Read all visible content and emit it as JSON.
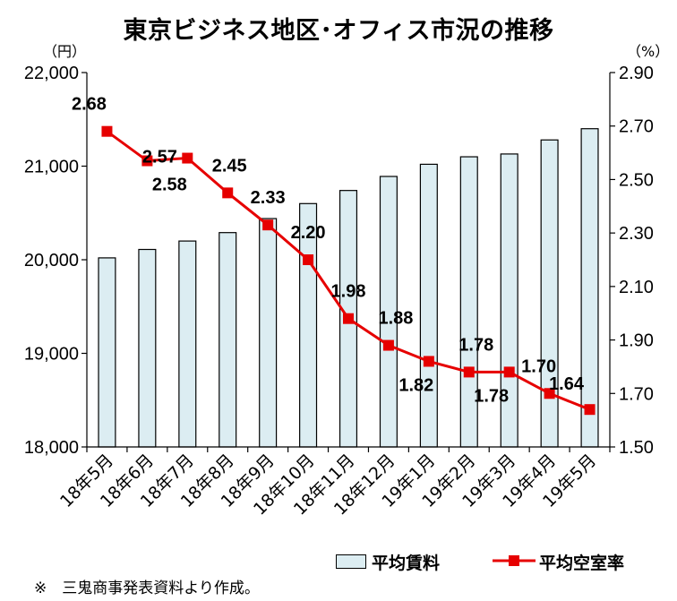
{
  "title": "東京ビジネス地区･オフィス市況の推移",
  "units": {
    "left": "（円）",
    "right": "（%）"
  },
  "footnote": "※　三鬼商事発表資料より作成。",
  "colors": {
    "bar_fill": "#dcedf2",
    "bar_stroke": "#000000",
    "line": "#e60000",
    "axis": "#000000"
  },
  "chart_data": {
    "type": "bar+line",
    "categories": [
      "18年5月",
      "18年6月",
      "18年7月",
      "18年8月",
      "18年9月",
      "18年10月",
      "18年11月",
      "18年12月",
      "19年1月",
      "19年2月",
      "19年3月",
      "19年4月",
      "19年5月"
    ],
    "y_left": {
      "min": 18000,
      "max": 22000,
      "ticks": [
        "18,000",
        "19,000",
        "20,000",
        "21,000",
        "22,000"
      ],
      "tick_values": [
        18000,
        19000,
        20000,
        21000,
        22000
      ]
    },
    "y_right": {
      "min": 1.5,
      "max": 2.9,
      "ticks": [
        "1.50",
        "1.70",
        "1.90",
        "2.10",
        "2.30",
        "2.50",
        "2.70",
        "2.90"
      ],
      "tick_values": [
        1.5,
        1.7,
        1.9,
        2.1,
        2.3,
        2.5,
        2.7,
        2.9
      ]
    },
    "series": [
      {
        "name": "平均賃料",
        "type": "bar",
        "axis": "left",
        "values": [
          20020,
          20110,
          20200,
          20290,
          20440,
          20600,
          20740,
          20890,
          21020,
          21100,
          21130,
          21280,
          21400
        ]
      },
      {
        "name": "平均空室率",
        "type": "line",
        "axis": "right",
        "values": [
          2.68,
          2.57,
          2.58,
          2.45,
          2.33,
          2.2,
          1.98,
          1.88,
          1.82,
          1.78,
          1.78,
          1.7,
          1.64
        ],
        "labels": [
          "2.68",
          "2.57",
          "2.58",
          "2.45",
          "2.33",
          "2.20",
          "1.98",
          "1.88",
          "1.82",
          "1.78",
          "1.78",
          "1.70",
          "1.64"
        ]
      }
    ],
    "legend": "bottom-right",
    "grid": false
  }
}
